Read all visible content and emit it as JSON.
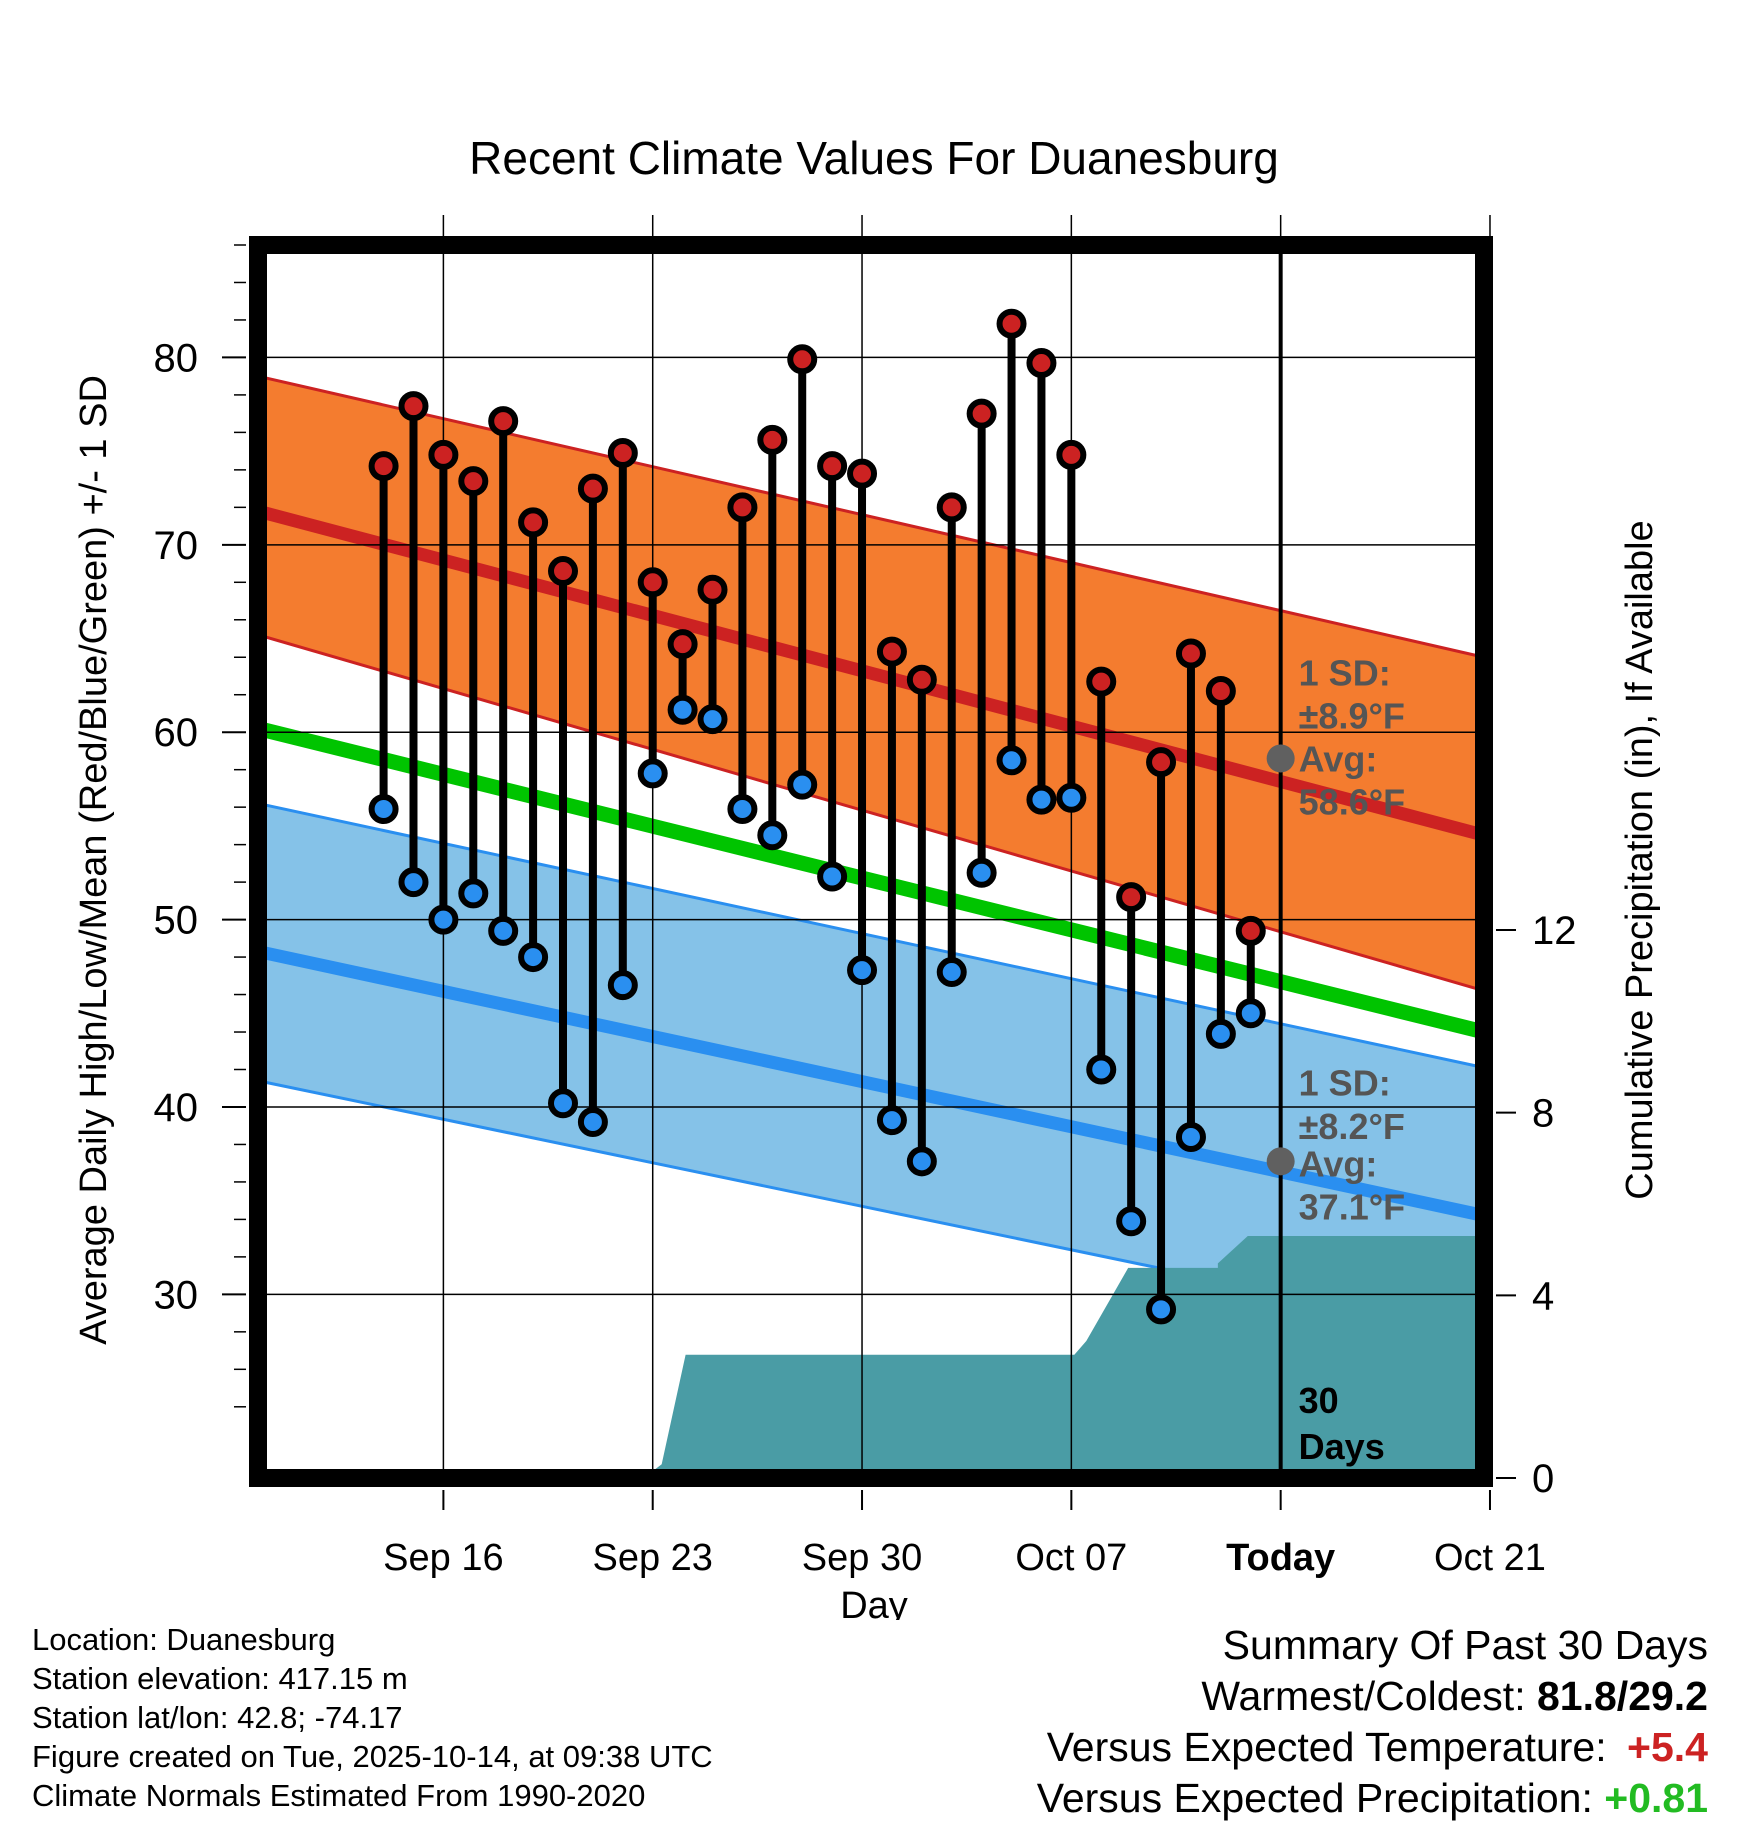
{
  "chart_data": {
    "type": "line",
    "title": "Recent Climate Values For Duanesburg",
    "xlabel": "Day",
    "ylabel": "Average Daily High/Low/Mean (Red/Blue/Green) +/- 1 SD",
    "y2label": "Cumulative Precipitation (in), If Available",
    "ylim": [
      20.2,
      86
    ],
    "y2lim": [
      0,
      27
    ],
    "xlim": [
      -3.2,
      37.8
    ],
    "x_origin": "Sep 13",
    "x_ticks": [
      {
        "x": 3,
        "label": "Sep 16"
      },
      {
        "x": 10,
        "label": "Sep 23"
      },
      {
        "x": 17,
        "label": "Sep 30"
      },
      {
        "x": 24,
        "label": "Oct 07"
      },
      {
        "x": 31,
        "label": "Today"
      },
      {
        "x": 38,
        "label": "Oct 21"
      }
    ],
    "y_ticks": [
      30,
      40,
      50,
      60,
      70,
      80
    ],
    "y2_ticks": [
      0,
      4,
      8,
      12
    ],
    "today_x": 31,
    "normals": {
      "x_range": [
        -3.2,
        37.8
      ],
      "high_mean": [
        71.8,
        54.5
      ],
      "high_sd_band": [
        [
          65.2,
          46.2
        ],
        [
          79.0,
          64.0
        ]
      ],
      "low_mean": [
        48.3,
        34.2
      ],
      "low_sd_band": [
        [
          41.4,
          27.8
        ],
        [
          56.2,
          42.1
        ]
      ],
      "mean": [
        60.2,
        44.0
      ]
    },
    "series": [
      {
        "name": "Daily High",
        "color": "#cc2222",
        "x": [
          1,
          2,
          3,
          4,
          5,
          6,
          7,
          8,
          9,
          10,
          11,
          12,
          13,
          14,
          15,
          16,
          17,
          18,
          19,
          20,
          21,
          22,
          23,
          24,
          25,
          26,
          27,
          28,
          29,
          30
        ],
        "values": [
          74.2,
          77.4,
          74.8,
          73.4,
          76.6,
          71.2,
          68.6,
          73.0,
          74.9,
          68.0,
          64.7,
          67.6,
          72.0,
          75.6,
          79.9,
          74.2,
          73.8,
          64.3,
          62.8,
          72.0,
          77.0,
          81.8,
          79.7,
          74.8,
          62.7,
          51.2,
          58.4,
          64.2,
          62.2,
          49.4
        ]
      },
      {
        "name": "Daily Low",
        "color": "#2a8ff0",
        "x": [
          1,
          2,
          3,
          4,
          5,
          6,
          7,
          8,
          9,
          10,
          11,
          12,
          13,
          14,
          15,
          16,
          17,
          18,
          19,
          20,
          21,
          22,
          23,
          24,
          25,
          26,
          27,
          28,
          29,
          30
        ],
        "values": [
          55.9,
          52.0,
          50.0,
          51.4,
          49.4,
          48.0,
          40.2,
          39.2,
          46.5,
          57.8,
          61.2,
          60.7,
          55.9,
          54.5,
          57.2,
          52.3,
          47.3,
          39.3,
          37.1,
          47.2,
          52.5,
          58.5,
          56.4,
          56.5,
          42.0,
          33.9,
          29.2,
          38.4,
          43.9,
          45.0
        ]
      },
      {
        "name": "Cumulative Precipitation",
        "axis": "y2",
        "color": "#4a9ca5",
        "x": [
          9.7,
          10.3,
          11.1,
          12.0,
          24.1,
          24.1,
          24.5,
          25.9,
          26.0,
          27.9,
          28.9,
          28.9,
          29.9,
          30.0,
          30.4,
          37.8
        ],
        "values": [
          0,
          0.3,
          2.7,
          2.7,
          2.7,
          2.7,
          3.0,
          4.6,
          4.6,
          4.6,
          4.6,
          4.7,
          5.3,
          5.3,
          5.3,
          5.3
        ]
      }
    ],
    "annotations": [
      {
        "text_top": "1 SD:",
        "text_bottom": "±8.9°F",
        "series": "high"
      },
      {
        "text_top": "Avg:",
        "text_bottom": "58.6°F",
        "series": "high",
        "value": 58.6
      },
      {
        "text_top": "1 SD:",
        "text_bottom": "±8.2°F",
        "series": "low"
      },
      {
        "text_top": "Avg:",
        "text_bottom": "37.1°F",
        "series": "low",
        "value": 37.1
      },
      {
        "text_top": "30",
        "text_bottom": "Days",
        "series": "window"
      }
    ]
  },
  "info": {
    "location": "Location: Duanesburg",
    "elevation": "Station elevation: 417.15 m",
    "latlon": "Station lat/lon: 42.8; -74.17",
    "created": "Figure created on Tue, 2025-10-14, at 09:38 UTC",
    "normals": "Climate Normals Estimated From 1990-2020"
  },
  "summary": {
    "title": "Summary Of Past 30 Days",
    "warmest_coldest_label": "Warmest/Coldest:",
    "warmest_coldest_value": "81.8/29.2",
    "temp_label": "Versus Expected Temperature:",
    "temp_value": "+5.4",
    "temp_color": "#cc2222",
    "precip_label": "Versus Expected Precipitation:",
    "precip_value": "+0.81",
    "precip_color": "#22bb22"
  }
}
